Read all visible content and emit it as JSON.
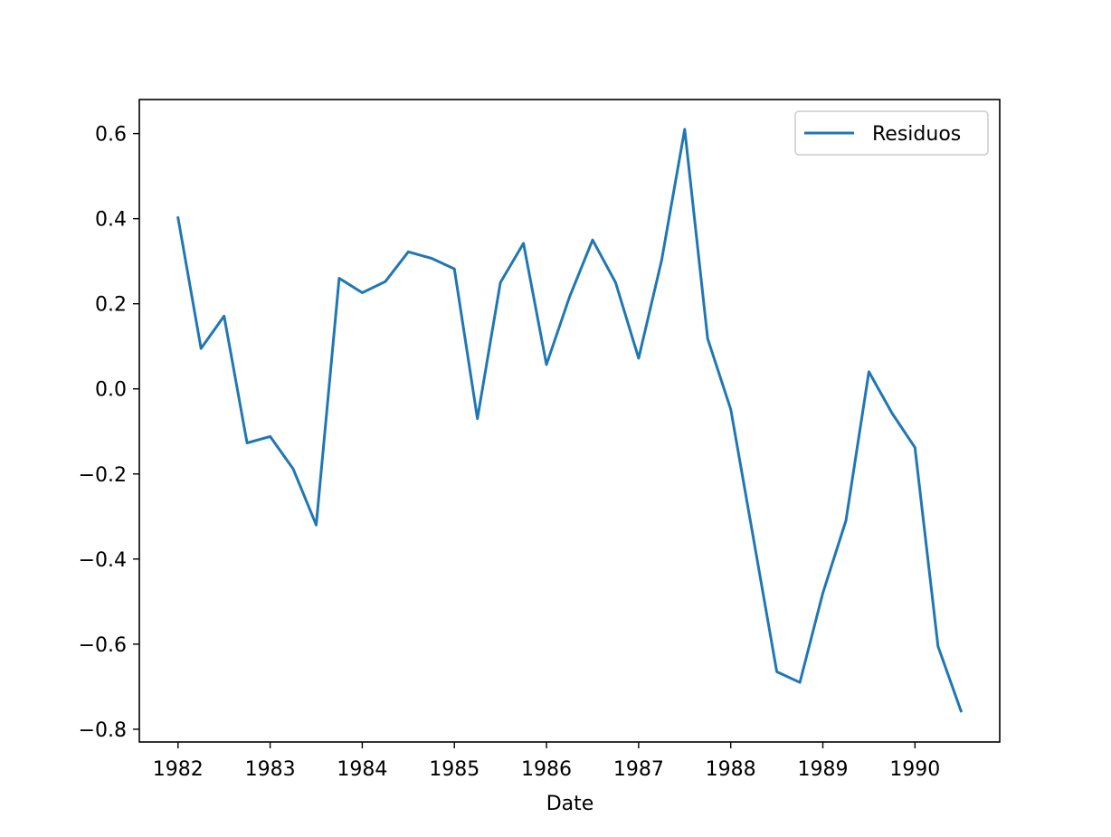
{
  "chart_data": {
    "type": "line",
    "xlabel": "Date",
    "ylabel": "",
    "xlim": [
      1981.58,
      1990.92
    ],
    "ylim": [
      -0.83,
      0.68
    ],
    "xticks": [
      {
        "value": 1982,
        "label": "1982"
      },
      {
        "value": 1983,
        "label": "1983"
      },
      {
        "value": 1984,
        "label": "1984"
      },
      {
        "value": 1985,
        "label": "1985"
      },
      {
        "value": 1986,
        "label": "1986"
      },
      {
        "value": 1987,
        "label": "1987"
      },
      {
        "value": 1988,
        "label": "1988"
      },
      {
        "value": 1989,
        "label": "1989"
      },
      {
        "value": 1990,
        "label": "1990"
      }
    ],
    "yticks": [
      {
        "value": 0.6,
        "label": "0.6"
      },
      {
        "value": 0.4,
        "label": "0.4"
      },
      {
        "value": 0.2,
        "label": "0.2"
      },
      {
        "value": 0.0,
        "label": "0.0"
      },
      {
        "value": -0.2,
        "label": "−0.2"
      },
      {
        "value": -0.4,
        "label": "−0.4"
      },
      {
        "value": -0.6,
        "label": "−0.6"
      },
      {
        "value": -0.8,
        "label": "−0.8"
      }
    ],
    "grid": false,
    "legend_position": "top-right",
    "series": [
      {
        "name": "Residuos",
        "color": "#1f77b4",
        "x": [
          1982.0,
          1982.25,
          1982.5,
          1982.75,
          1983.0,
          1983.25,
          1983.5,
          1983.75,
          1984.0,
          1984.25,
          1984.5,
          1984.75,
          1985.0,
          1985.25,
          1985.5,
          1985.75,
          1986.0,
          1986.25,
          1986.5,
          1986.75,
          1987.0,
          1987.25,
          1987.5,
          1987.75,
          1988.0,
          1988.25,
          1988.5,
          1988.75,
          1989.0,
          1989.25,
          1989.5,
          1989.75,
          1990.0,
          1990.25,
          1990.5
        ],
        "y": [
          0.402,
          0.095,
          0.171,
          -0.127,
          -0.112,
          -0.188,
          -0.32,
          0.26,
          0.226,
          0.252,
          0.322,
          0.307,
          0.282,
          -0.07,
          0.25,
          0.342,
          0.057,
          0.216,
          0.35,
          0.25,
          0.072,
          0.302,
          0.61,
          0.118,
          -0.048,
          -0.355,
          -0.665,
          -0.69,
          -0.48,
          -0.31,
          0.04,
          -0.057,
          -0.138,
          -0.605,
          -0.757
        ]
      }
    ]
  }
}
